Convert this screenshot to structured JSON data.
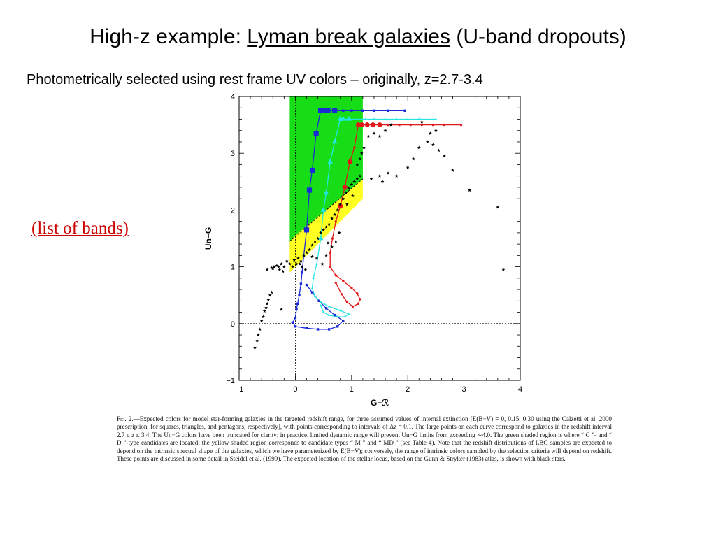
{
  "title": {
    "prefix": "High-z example:  ",
    "link": "Lyman break galaxies",
    "suffix": " (U-band dropouts)"
  },
  "subtitle": "Photometrically selected using rest frame UV colors – originally, z=2.7-3.4",
  "bands_link": "(list of bands)",
  "caption": {
    "label": "Fig. 2.",
    "text": "—Expected colors for model star-forming galaxies in the targeted redshift range, for three assumed values of internal extinction [E(B−V) = 0, 0.15, 0.30 using the Calzetti et al. 2000 prescription, for squares, triangles, and pentagons, respectively], with points corresponding to intervals of Δz = 0.1. The large points on each curve correspond to galaxies in the redshift interval 2.7 ≤ z ≤ 3.4. The Un−G colors have been truncated for clarity; in practice, limited dynamic range will prevent Un−G limits from exceeding ∼4.0. The green shaded region is where “ C ”- and “ D ”-type candidates are located; the yellow shaded region corresponds to candidate types “ M ” and “ MD ” (see Table 4). Note that the redshift distributions of LBG samples are expected to depend on the intrinsic spectral shape of the galaxies, which we have parameterized by E(B−V); conversely, the range of intrinsic colors sampled by the selection criteria will depend on redshift. These points are discussed in some detail in Steidel et al. (1999). The expected location of the stellar locus, based on the Gunn & Stryker (1983) atlas, is shown with black stars."
  },
  "chart_data": {
    "type": "scatter",
    "xlabel": "G−ℛ",
    "ylabel": "Un−G",
    "xlim": [
      -1,
      4
    ],
    "ylim": [
      -1,
      4
    ],
    "xticks": [
      -1,
      0,
      1,
      2,
      3,
      4
    ],
    "yticks": [
      -1,
      0,
      1,
      2,
      3,
      4
    ],
    "grid": false,
    "colors": {
      "green_region": "#16dd16",
      "yellow_region": "#ffff22",
      "squares": "#1a2bd6",
      "triangles": "#22e6e6",
      "pentagons": "#e01a1a",
      "stars": "#000000"
    },
    "regions": [
      {
        "color_key": "green_region",
        "polygon": [
          [
            -0.1,
            4.0
          ],
          [
            1.2,
            4.0
          ],
          [
            1.2,
            2.55
          ],
          [
            0.0,
            1.3
          ],
          [
            -0.1,
            1.3
          ]
        ]
      },
      {
        "color_key": "yellow_region",
        "polygon": [
          [
            -0.1,
            0.9
          ],
          [
            -0.1,
            1.45
          ],
          [
            0.0,
            1.55
          ],
          [
            1.2,
            2.55
          ],
          [
            1.2,
            2.2
          ],
          [
            0.5,
            1.5
          ],
          [
            -0.1,
            0.9
          ]
        ]
      }
    ],
    "dotted_guides": {
      "x": 0,
      "y": 0
    },
    "series": [
      {
        "marker": "square",
        "color_key": "squares",
        "points": [
          [
            1.95,
            3.75
          ],
          [
            1.65,
            3.75
          ],
          [
            1.4,
            3.75
          ],
          [
            1.2,
            3.75
          ],
          [
            1.0,
            3.75
          ],
          [
            0.85,
            3.75
          ],
          [
            0.7,
            3.75
          ],
          [
            0.58,
            3.75
          ],
          [
            0.5,
            3.75
          ],
          [
            0.45,
            3.75
          ],
          [
            0.37,
            3.35
          ],
          [
            0.3,
            2.7
          ],
          [
            0.25,
            2.35
          ],
          [
            0.2,
            1.65
          ],
          [
            0.15,
            1.2
          ],
          [
            0.12,
            0.9
          ],
          [
            0.1,
            0.7
          ],
          [
            0.07,
            0.5
          ],
          [
            0.04,
            0.35
          ],
          [
            0.02,
            0.25
          ],
          [
            0.0,
            0.1
          ],
          [
            -0.05,
            0.02
          ],
          [
            0.0,
            -0.05
          ],
          [
            0.2,
            -0.08
          ],
          [
            0.4,
            -0.1
          ],
          [
            0.6,
            -0.1
          ],
          [
            0.75,
            -0.05
          ],
          [
            0.85,
            0.05
          ],
          [
            0.7,
            0.15
          ],
          [
            0.55,
            0.27
          ],
          [
            0.42,
            0.4
          ],
          [
            0.3,
            0.55
          ],
          [
            0.2,
            0.68
          ]
        ],
        "large": [
          [
            0.45,
            3.75
          ],
          [
            0.5,
            3.75
          ],
          [
            0.58,
            3.75
          ],
          [
            0.7,
            3.75
          ],
          [
            0.37,
            3.35
          ],
          [
            0.3,
            2.7
          ],
          [
            0.25,
            2.35
          ],
          [
            0.2,
            1.65
          ]
        ]
      },
      {
        "marker": "triangle",
        "color_key": "triangles",
        "points": [
          [
            2.5,
            3.6
          ],
          [
            2.2,
            3.6
          ],
          [
            2.0,
            3.6
          ],
          [
            1.8,
            3.6
          ],
          [
            1.6,
            3.6
          ],
          [
            1.4,
            3.6
          ],
          [
            1.25,
            3.6
          ],
          [
            1.1,
            3.6
          ],
          [
            0.95,
            3.6
          ],
          [
            0.85,
            3.6
          ],
          [
            0.8,
            3.6
          ],
          [
            0.7,
            3.2
          ],
          [
            0.62,
            2.85
          ],
          [
            0.55,
            2.3
          ],
          [
            0.5,
            2.0
          ],
          [
            0.45,
            1.5
          ],
          [
            0.38,
            1.05
          ],
          [
            0.32,
            0.8
          ],
          [
            0.3,
            0.62
          ],
          [
            0.35,
            0.48
          ],
          [
            0.45,
            0.38
          ],
          [
            0.6,
            0.3
          ],
          [
            0.8,
            0.23
          ],
          [
            0.95,
            0.17
          ],
          [
            0.88,
            0.12
          ],
          [
            0.75,
            0.12
          ],
          [
            0.6,
            0.15
          ],
          [
            0.5,
            0.2
          ],
          [
            0.45,
            0.32
          ]
        ],
        "large": [
          [
            0.8,
            3.6
          ],
          [
            0.85,
            3.6
          ],
          [
            0.95,
            3.6
          ],
          [
            0.7,
            3.2
          ],
          [
            0.62,
            2.85
          ],
          [
            0.55,
            2.3
          ],
          [
            0.5,
            2.0
          ],
          [
            0.45,
            1.5
          ]
        ]
      },
      {
        "marker": "pentagon",
        "color_key": "pentagons",
        "points": [
          [
            2.95,
            3.5
          ],
          [
            2.65,
            3.5
          ],
          [
            2.45,
            3.5
          ],
          [
            2.25,
            3.5
          ],
          [
            2.05,
            3.5
          ],
          [
            1.85,
            3.5
          ],
          [
            1.65,
            3.5
          ],
          [
            1.5,
            3.5
          ],
          [
            1.38,
            3.5
          ],
          [
            1.28,
            3.5
          ],
          [
            1.18,
            3.5
          ],
          [
            1.12,
            3.5
          ],
          [
            1.05,
            3.1
          ],
          [
            0.97,
            2.85
          ],
          [
            0.88,
            2.4
          ],
          [
            0.8,
            2.07
          ],
          [
            0.72,
            1.8
          ],
          [
            0.66,
            1.5
          ],
          [
            0.62,
            1.25
          ],
          [
            0.62,
            1.0
          ],
          [
            0.72,
            0.85
          ],
          [
            0.85,
            0.75
          ],
          [
            1.0,
            0.63
          ],
          [
            1.1,
            0.53
          ],
          [
            1.15,
            0.43
          ],
          [
            1.12,
            0.35
          ],
          [
            1.02,
            0.3
          ],
          [
            0.92,
            0.38
          ],
          [
            0.82,
            0.52
          ],
          [
            0.72,
            0.72
          ]
        ],
        "large": [
          [
            1.12,
            3.5
          ],
          [
            1.18,
            3.5
          ],
          [
            1.28,
            3.5
          ],
          [
            1.38,
            3.5
          ],
          [
            1.5,
            3.5
          ],
          [
            0.97,
            2.85
          ],
          [
            0.88,
            2.4
          ],
          [
            0.8,
            2.07
          ]
        ]
      },
      {
        "marker": "star",
        "color_key": "stars",
        "name": "stellar locus",
        "points": [
          [
            -0.72,
            -0.42
          ],
          [
            -0.68,
            -0.3
          ],
          [
            -0.66,
            -0.2
          ],
          [
            -0.63,
            -0.1
          ],
          [
            -0.6,
            0.05
          ],
          [
            -0.57,
            0.12
          ],
          [
            -0.55,
            0.22
          ],
          [
            -0.52,
            0.28
          ],
          [
            -0.5,
            0.35
          ],
          [
            -0.48,
            0.42
          ],
          [
            -0.45,
            0.5
          ],
          [
            -0.42,
            0.55
          ],
          [
            -0.25,
            0.25
          ],
          [
            -0.4,
            0.97
          ],
          [
            -0.38,
            1.0
          ],
          [
            -0.33,
            1.02
          ],
          [
            -0.3,
            1.0
          ],
          [
            -0.28,
            0.95
          ],
          [
            -0.25,
            1.05
          ],
          [
            -0.2,
            1.0
          ],
          [
            -0.15,
            1.1
          ],
          [
            -0.1,
            1.05
          ],
          [
            -0.05,
            1.0
          ],
          [
            -0.02,
            1.12
          ],
          [
            0.02,
            1.05
          ],
          [
            0.05,
            1.15
          ],
          [
            0.08,
            1.05
          ],
          [
            0.1,
            1.1
          ],
          [
            0.12,
            1.0
          ],
          [
            0.15,
            1.2
          ],
          [
            0.2,
            1.25
          ],
          [
            0.25,
            1.3
          ],
          [
            0.3,
            1.38
          ],
          [
            0.35,
            1.45
          ],
          [
            0.4,
            1.5
          ],
          [
            0.45,
            1.6
          ],
          [
            0.5,
            1.65
          ],
          [
            0.55,
            1.7
          ],
          [
            0.6,
            1.75
          ],
          [
            0.65,
            1.85
          ],
          [
            0.7,
            1.92
          ],
          [
            0.75,
            2.0
          ],
          [
            0.8,
            2.1
          ],
          [
            0.85,
            2.2
          ],
          [
            0.9,
            2.3
          ],
          [
            0.95,
            2.38
          ],
          [
            1.0,
            2.45
          ],
          [
            1.05,
            2.5
          ],
          [
            1.1,
            2.55
          ],
          [
            1.15,
            2.6
          ],
          [
            1.1,
            2.8
          ],
          [
            1.15,
            2.9
          ],
          [
            1.18,
            3.0
          ],
          [
            1.22,
            3.1
          ],
          [
            1.3,
            3.3
          ],
          [
            1.4,
            3.35
          ],
          [
            1.5,
            3.3
          ],
          [
            1.6,
            3.4
          ],
          [
            1.7,
            3.5
          ],
          [
            1.35,
            2.55
          ],
          [
            1.5,
            2.6
          ],
          [
            1.55,
            2.5
          ],
          [
            1.65,
            2.65
          ],
          [
            1.8,
            2.6
          ],
          [
            2.0,
            2.75
          ],
          [
            2.1,
            2.9
          ],
          [
            2.2,
            3.1
          ],
          [
            2.35,
            3.2
          ],
          [
            2.4,
            3.35
          ],
          [
            2.5,
            3.4
          ],
          [
            2.25,
            3.55
          ],
          [
            2.45,
            3.15
          ],
          [
            2.55,
            3.05
          ],
          [
            2.65,
            2.95
          ],
          [
            2.8,
            2.7
          ],
          [
            3.1,
            2.35
          ],
          [
            3.6,
            2.05
          ],
          [
            3.7,
            0.95
          ],
          [
            -0.5,
            0.95
          ],
          [
            -0.42,
            0.98
          ],
          [
            -0.22,
            0.92
          ],
          [
            0.18,
            0.95
          ],
          [
            0.38,
            1.15
          ],
          [
            0.55,
            1.2
          ],
          [
            0.65,
            1.35
          ],
          [
            0.72,
            1.45
          ],
          [
            0.78,
            1.6
          ],
          [
            0.48,
            1.05
          ],
          [
            0.3,
            1.18
          ],
          [
            0.58,
            1.42
          ],
          [
            0.92,
            2.1
          ],
          [
            1.02,
            2.25
          ]
        ]
      }
    ]
  }
}
